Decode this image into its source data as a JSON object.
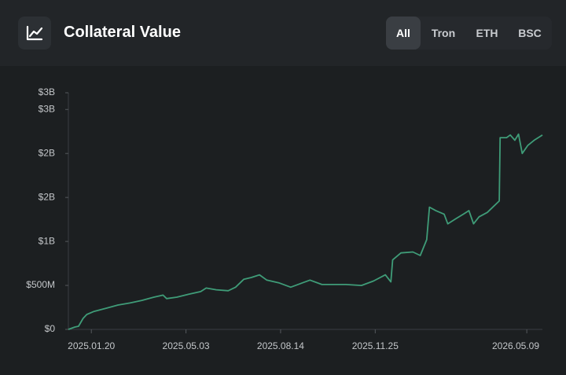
{
  "header": {
    "title": "Collateral Value",
    "tabs": [
      "All",
      "Tron",
      "ETH",
      "BSC"
    ],
    "active_tab": 0
  },
  "chart_data": {
    "type": "line",
    "x": [
      "2024.12.26",
      "2025.01.02",
      "2025.01.06",
      "2025.01.11",
      "2025.01.15",
      "2025.01.23",
      "2025.02.05",
      "2025.02.18",
      "2025.03.03",
      "2025.03.16",
      "2025.03.29",
      "2025.04.08",
      "2025.04.12",
      "2025.04.23",
      "2025.05.06",
      "2025.05.19",
      "2025.05.25",
      "2025.06.05",
      "2025.06.18",
      "2025.06.26",
      "2025.07.05",
      "2025.07.13",
      "2025.07.22",
      "2025.07.30",
      "2025.08.12",
      "2025.08.25",
      "2025.09.07",
      "2025.09.15",
      "2025.09.28",
      "2025.10.11",
      "2025.10.24",
      "2025.11.10",
      "2025.11.23",
      "2025.12.06",
      "2025.12.12",
      "2025.12.14",
      "2025.12.23",
      "2026.01.05",
      "2026.01.13",
      "2026.01.20",
      "2026.01.23",
      "2026.01.30",
      "2026.02.08",
      "2026.02.12",
      "2026.02.21",
      "2026.03.01",
      "2026.03.07",
      "2026.03.12",
      "2026.03.18",
      "2026.03.27",
      "2026.04.03",
      "2026.04.09",
      "2026.04.10",
      "2026.04.17",
      "2026.04.21",
      "2026.04.26",
      "2026.04.30",
      "2026.05.04",
      "2026.05.10",
      "2026.05.17",
      "2026.05.26"
    ],
    "series": [
      {
        "name": "Collateral Value",
        "color": "#3f9c78",
        "values": [
          0,
          27000000,
          36000000,
          125000000,
          170000000,
          205000000,
          240000000,
          277000000,
          300000000,
          330000000,
          366000000,
          390000000,
          350000000,
          366000000,
          400000000,
          430000000,
          470000000,
          450000000,
          440000000,
          480000000,
          570000000,
          590000000,
          620000000,
          560000000,
          530000000,
          480000000,
          530000000,
          560000000,
          510000000,
          510000000,
          510000000,
          500000000,
          550000000,
          620000000,
          540000000,
          790000000,
          870000000,
          880000000,
          840000000,
          1020000000,
          1390000000,
          1350000000,
          1310000000,
          1200000000,
          1260000000,
          1310000000,
          1350000000,
          1200000000,
          1280000000,
          1330000000,
          1400000000,
          1460000000,
          2180000000,
          2180000000,
          2210000000,
          2150000000,
          2220000000,
          2000000000,
          2090000000,
          2150000000,
          2210000000
        ]
      }
    ],
    "xlim": [
      "2024.12.26",
      "2026.05.26"
    ],
    "xticks": [
      "2025.01.20",
      "2025.05.03",
      "2025.08.14",
      "2025.11.25",
      "2026.05.09"
    ],
    "ylim": [
      0,
      2690000000
    ],
    "yticks": [
      {
        "value": 0,
        "label": "$0"
      },
      {
        "value": 500000000,
        "label": "$500M"
      },
      {
        "value": 1000000000,
        "label": "$1B"
      },
      {
        "value": 1500000000,
        "label": "$2B"
      },
      {
        "value": 2000000000,
        "label": "$2B"
      },
      {
        "value": 2500000000,
        "label": "$3B"
      },
      {
        "value": 2690000000,
        "label": "$3B"
      }
    ],
    "grid": false
  }
}
